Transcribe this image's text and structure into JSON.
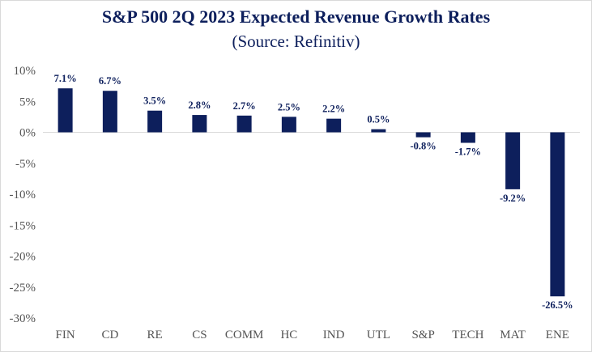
{
  "chart_data": {
    "type": "bar",
    "title": "S&P 500 2Q 2023 Expected Revenue Growth Rates",
    "subtitle": "(Source: Refinitiv)",
    "categories": [
      "FIN",
      "CD",
      "RE",
      "CS",
      "COMM",
      "HC",
      "IND",
      "UTL",
      "S&P",
      "TECH",
      "MAT",
      "ENE"
    ],
    "values": [
      7.1,
      6.7,
      3.5,
      2.8,
      2.7,
      2.5,
      2.2,
      0.5,
      -0.8,
      -1.7,
      -9.2,
      -26.5
    ],
    "data_labels": [
      "7.1%",
      "6.7%",
      "3.5%",
      "2.8%",
      "2.7%",
      "2.5%",
      "2.2%",
      "0.5%",
      "-0.8%",
      "-1.7%",
      "-9.2%",
      "-26.5%"
    ],
    "ylim": [
      -30,
      10
    ],
    "yticks": [
      10,
      5,
      0,
      -5,
      -10,
      -15,
      -20,
      -25,
      -30
    ],
    "ytick_labels": [
      "10%",
      "5%",
      "0%",
      "-5%",
      "-10%",
      "-15%",
      "-20%",
      "-25%",
      "-30%"
    ],
    "xlabel": "",
    "ylabel": "",
    "grid": false,
    "bar_color": "#0d1f5c",
    "label_color": "#0d1f5c",
    "axis_line_color": "#d9d9d9"
  }
}
